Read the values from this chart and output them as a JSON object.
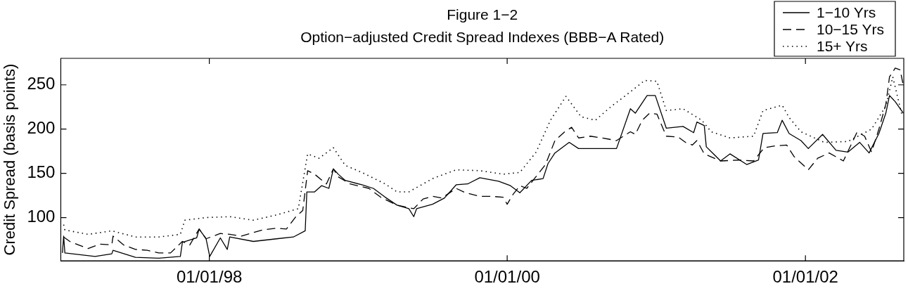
{
  "chart_data": {
    "type": "line",
    "title": "Figure 1−2",
    "subtitle": "Option−adjusted Credit Spread Indexes (BBB−A Rated)",
    "ylabel": "Credit Spread (basis points)",
    "xlim": [
      "1997-01-02",
      "2002-08-30"
    ],
    "xticks": [
      {
        "value": "1998-01-01",
        "label": "01/01/98"
      },
      {
        "value": "2000-01-01",
        "label": "01/01/00"
      },
      {
        "value": "2002-01-01",
        "label": "01/01/02"
      }
    ],
    "ylim": [
      51,
      280
    ],
    "yticks": [
      100,
      150,
      200,
      250
    ],
    "legend": "top right",
    "marker": "none",
    "series": [
      {
        "name": "1−10 Yrs",
        "color": "#000000",
        "line_style": "solid",
        "x": [
          "1997-01-06",
          "1997-01-09",
          "1997-01-12",
          "1997-03-27",
          "1997-05-07",
          "1997-05-10",
          "1997-07-04",
          "1997-08-30",
          "1997-10-22",
          "1997-10-27",
          "1997-12-01",
          "1997-12-07",
          "1997-12-24",
          "1998-01-02",
          "1998-01-28",
          "1998-02-14",
          "1998-02-20",
          "1998-04-19",
          "1998-06-15",
          "1998-07-26",
          "1998-08-24",
          "1998-08-28",
          "1998-09-16",
          "1998-10-03",
          "1998-10-21",
          "1998-11-01",
          "1998-11-13",
          "1998-11-30",
          "1999-01-10",
          "1999-02-07",
          "1999-03-08",
          "1999-04-06",
          "1999-05-05",
          "1999-05-17",
          "1999-05-24",
          "1999-07-02",
          "1999-07-31",
          "1999-08-29",
          "1999-09-26",
          "1999-10-26",
          "1999-12-11",
          "2000-01-09",
          "2000-02-01",
          "2000-03-01",
          "2000-03-29",
          "2000-04-10",
          "2000-04-27",
          "2000-06-01",
          "2000-06-24",
          "2000-08-04",
          "2000-09-25",
          "2000-10-29",
          "2000-11-10",
          "2000-12-09",
          "2000-12-29",
          "2001-01-25",
          "2001-03-07",
          "2001-04-02",
          "2001-04-10",
          "2001-04-28",
          "2001-05-03",
          "2001-06-07",
          "2001-06-30",
          "2001-08-10",
          "2001-09-08",
          "2001-09-19",
          "2001-10-24",
          "2001-11-05",
          "2001-11-22",
          "2001-12-21",
          "2002-01-08",
          "2002-02-12",
          "2002-03-17",
          "2002-04-15",
          "2002-05-14",
          "2002-06-06",
          "2002-06-30",
          "2002-07-17",
          "2002-07-26",
          "2002-08-09",
          "2002-08-29"
        ],
        "values": [
          60,
          79,
          60,
          56,
          59,
          63,
          55,
          54,
          56,
          72,
          77,
          87,
          76,
          56,
          77,
          64,
          78,
          73,
          76,
          78,
          85,
          129,
          129,
          136,
          133,
          155,
          149,
          142,
          137,
          133,
          123,
          114,
          110,
          101,
          110,
          115,
          122,
          137,
          138,
          145,
          141,
          136,
          128,
          142,
          144,
          161,
          173,
          185,
          178,
          178,
          178,
          223,
          218,
          238,
          238,
          201,
          203,
          196,
          208,
          204,
          180,
          164,
          172,
          160,
          165,
          195,
          196,
          210,
          195,
          187,
          178,
          194,
          176,
          174,
          185,
          173,
          195,
          218,
          238,
          231,
          218
        ]
      },
      {
        "name": "10−15 Yrs",
        "color": "#000000",
        "line_style": "dashed",
        "x": [
          "1997-01-09",
          "1997-01-24",
          "1997-02-15",
          "1997-03-10",
          "1997-04-08",
          "1997-05-07",
          "1997-05-10",
          "1997-06-05",
          "1997-07-04",
          "1997-08-02",
          "1997-08-30",
          "1997-09-28",
          "1997-10-27",
          "1997-11-14",
          "1997-12-07",
          "1997-12-24",
          "1998-01-28",
          "1998-02-20",
          "1998-03-21",
          "1998-04-19",
          "1998-05-12",
          "1998-06-15",
          "1998-07-09",
          "1998-08-01",
          "1998-08-18",
          "1998-08-30",
          "1998-09-16",
          "1998-10-15",
          "1998-11-01",
          "1998-11-13",
          "1998-12-12",
          "1999-01-27",
          "1999-02-25",
          "1999-04-06",
          "1999-05-17",
          "1999-06-09",
          "1999-07-02",
          "1999-07-25",
          "1999-08-29",
          "1999-09-21",
          "1999-10-26",
          "1999-11-23",
          "1999-12-22",
          "2000-01-01",
          "2000-01-15",
          "2000-02-01",
          "2000-02-18",
          "2000-04-04",
          "2000-04-27",
          "2000-05-21",
          "2000-06-07",
          "2000-06-24",
          "2000-07-23",
          "2000-08-21",
          "2000-09-25",
          "2000-10-29",
          "2000-11-10",
          "2000-11-27",
          "2000-12-15",
          "2001-01-02",
          "2001-01-25",
          "2001-02-23",
          "2001-03-13",
          "2001-03-30",
          "2001-04-10",
          "2001-04-28",
          "2001-06-07",
          "2001-07-23",
          "2001-08-27",
          "2001-09-22",
          "2001-10-18",
          "2001-11-16",
          "2001-12-04",
          "2002-01-08",
          "2002-01-31",
          "2002-02-28",
          "2002-04-04",
          "2002-05-08",
          "2002-05-26",
          "2002-06-12",
          "2002-06-30",
          "2002-07-17",
          "2002-07-26",
          "2002-08-09",
          "2002-08-21",
          "2002-08-29"
        ],
        "values": [
          78,
          73,
          69,
          65,
          70,
          69,
          79,
          69,
          64,
          63,
          60,
          60,
          73,
          69,
          87,
          76,
          82,
          81,
          79,
          83,
          86,
          88,
          87,
          101,
          108,
          153,
          149,
          138,
          155,
          146,
          138,
          133,
          123,
          114,
          110,
          121,
          124,
          122,
          133,
          128,
          124,
          124,
          123,
          115,
          126,
          136,
          133,
          160,
          187,
          197,
          202,
          190,
          192,
          190,
          187,
          197,
          194,
          210,
          218,
          217,
          192,
          191,
          185,
          182,
          187,
          172,
          164,
          165,
          164,
          179,
          181,
          182,
          169,
          154,
          167,
          173,
          164,
          197,
          192,
          174,
          200,
          228,
          259,
          269,
          267,
          249
        ]
      },
      {
        "name": "15+ Yrs",
        "color": "#000000",
        "line_style": "dotted",
        "x": [
          "1997-01-09",
          "1997-01-12",
          "1997-03-10",
          "1997-05-07",
          "1997-07-04",
          "1997-08-30",
          "1997-10-22",
          "1997-11-02",
          "1997-12-24",
          "1998-02-20",
          "1998-04-19",
          "1998-06-15",
          "1998-08-07",
          "1998-08-30",
          "1998-09-27",
          "1998-11-01",
          "1998-11-30",
          "1999-01-10",
          "1999-03-08",
          "1999-04-06",
          "1999-05-05",
          "1999-07-02",
          "1999-08-29",
          "1999-10-26",
          "1999-12-22",
          "2000-02-01",
          "2000-03-12",
          "2000-04-16",
          "2000-05-24",
          "2000-06-30",
          "2000-08-04",
          "2000-09-13",
          "2000-10-12",
          "2000-12-03",
          "2001-01-02",
          "2001-01-25",
          "2001-03-07",
          "2001-04-22",
          "2001-05-15",
          "2001-06-30",
          "2001-08-27",
          "2001-09-19",
          "2001-11-05",
          "2001-11-22",
          "2001-12-21",
          "2002-02-16",
          "2002-04-15",
          "2002-06-12",
          "2002-07-17",
          "2002-08-03",
          "2002-08-26"
        ],
        "values": [
          92,
          86,
          81,
          85,
          78,
          78,
          81,
          97,
          100,
          101,
          97,
          103,
          110,
          172,
          167,
          179,
          159,
          151,
          138,
          129,
          129,
          144,
          154,
          153,
          149,
          151,
          174,
          210,
          237,
          214,
          210,
          226,
          236,
          255,
          254,
          221,
          223,
          210,
          197,
          190,
          192,
          221,
          227,
          213,
          197,
          185,
          186,
          200,
          226,
          259,
          215
        ]
      }
    ]
  }
}
